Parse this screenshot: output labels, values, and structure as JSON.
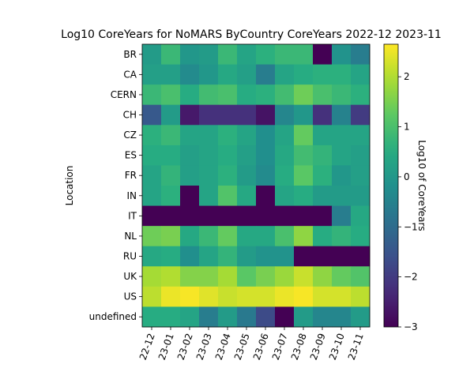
{
  "chart_data": {
    "type": "heatmap",
    "title": "Log10 CoreYears for NoMARS ByCountry CoreYears 2022-12 2023-11",
    "xlabel": "",
    "ylabel": "Location",
    "colorbar_label": "Log10 of CoreYears",
    "colormap": "viridis",
    "vmin": -3,
    "vmax": 2.65,
    "colorbar_ticks": [
      -3,
      -2,
      -1,
      0,
      1,
      2
    ],
    "x_categories": [
      "22-12",
      "23-01",
      "23-02",
      "23-03",
      "23-04",
      "23-05",
      "23-06",
      "23-07",
      "23-08",
      "23-09",
      "23-10",
      "23-11"
    ],
    "y_categories": [
      "BR",
      "CA",
      "CERN",
      "CH",
      "CZ",
      "ES",
      "FR",
      "IN",
      "IT",
      "NL",
      "RU",
      "UK",
      "US",
      "undefined"
    ],
    "values": [
      [
        0.1,
        0.8,
        0.0,
        0.1,
        0.8,
        0.3,
        0.6,
        0.8,
        0.8,
        -3.0,
        -0.1,
        -0.6
      ],
      [
        0.2,
        0.2,
        -0.3,
        0.0,
        0.4,
        0.2,
        -0.6,
        0.3,
        0.5,
        0.6,
        0.6,
        0.3
      ],
      [
        0.8,
        1.0,
        0.5,
        0.9,
        1.0,
        0.5,
        0.6,
        0.9,
        1.4,
        1.0,
        0.8,
        0.6
      ],
      [
        -1.4,
        0.1,
        -2.6,
        -2.2,
        -2.2,
        -2.2,
        -2.7,
        -0.4,
        0.0,
        -2.2,
        -0.5,
        -2.0
      ],
      [
        0.6,
        0.8,
        0.3,
        0.3,
        0.6,
        0.3,
        -0.2,
        0.3,
        1.3,
        0.3,
        0.3,
        0.3
      ],
      [
        0.5,
        0.5,
        0.2,
        0.3,
        0.5,
        0.2,
        -0.2,
        0.4,
        0.9,
        0.7,
        0.3,
        0.2
      ],
      [
        0.3,
        0.7,
        0.2,
        0.3,
        0.6,
        0.1,
        -0.3,
        0.5,
        1.2,
        0.6,
        0.0,
        0.2
      ],
      [
        0.3,
        0.6,
        -3.0,
        0.3,
        1.1,
        0.4,
        -3.0,
        0.3,
        0.5,
        0.1,
        0.1,
        0.1
      ],
      [
        -3.0,
        -3.0,
        -3.0,
        -3.0,
        -3.0,
        -3.0,
        -3.0,
        -3.0,
        -3.0,
        -3.0,
        -0.6,
        0.4
      ],
      [
        1.4,
        1.5,
        0.4,
        0.8,
        1.3,
        0.4,
        0.4,
        1.0,
        1.7,
        0.5,
        0.7,
        0.5
      ],
      [
        0.4,
        0.5,
        -0.2,
        0.3,
        0.7,
        0.1,
        -0.1,
        -0.1,
        -3.0,
        -3.0,
        -3.0,
        -3.0
      ],
      [
        1.9,
        2.0,
        1.6,
        1.6,
        1.9,
        1.2,
        1.5,
        1.8,
        2.2,
        1.7,
        1.3,
        1.1
      ],
      [
        2.1,
        2.5,
        2.6,
        2.4,
        2.2,
        2.3,
        2.3,
        2.5,
        2.6,
        2.3,
        2.3,
        2.1
      ],
      [
        0.5,
        0.5,
        0.3,
        -0.6,
        0.1,
        -0.7,
        -1.7,
        -3.0,
        0.1,
        -0.4,
        -0.4,
        0.1
      ]
    ]
  }
}
